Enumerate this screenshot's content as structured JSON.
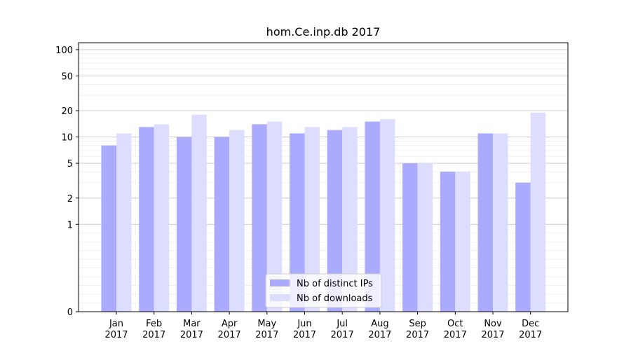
{
  "chart_data": {
    "type": "bar",
    "title": "hom.Ce.inp.db 2017",
    "xlabel": "",
    "ylabel": "",
    "yscale": "symlog",
    "ylim": [
      0,
      120
    ],
    "yticks": [
      0,
      1,
      2,
      5,
      10,
      20,
      50,
      100
    ],
    "ytick_labels": [
      "0",
      "1",
      "2",
      "5",
      "10",
      "20",
      "50",
      "100"
    ],
    "grid": true,
    "legend_position": "bottom-center",
    "categories": [
      {
        "month": "Jan",
        "year": "2017"
      },
      {
        "month": "Feb",
        "year": "2017"
      },
      {
        "month": "Mar",
        "year": "2017"
      },
      {
        "month": "Apr",
        "year": "2017"
      },
      {
        "month": "May",
        "year": "2017"
      },
      {
        "month": "Jun",
        "year": "2017"
      },
      {
        "month": "Jul",
        "year": "2017"
      },
      {
        "month": "Aug",
        "year": "2017"
      },
      {
        "month": "Sep",
        "year": "2017"
      },
      {
        "month": "Oct",
        "year": "2017"
      },
      {
        "month": "Nov",
        "year": "2017"
      },
      {
        "month": "Dec",
        "year": "2017"
      }
    ],
    "series": [
      {
        "name": "Nb of distinct IPs",
        "color": "#aaaaff",
        "values": [
          8,
          13,
          10,
          10,
          14,
          11,
          12,
          15,
          5,
          4,
          11,
          3
        ]
      },
      {
        "name": "Nb of downloads",
        "color": "#ddddff",
        "values": [
          11,
          14,
          18,
          12,
          15,
          13,
          13,
          16,
          5,
          4,
          11,
          19
        ]
      }
    ]
  }
}
